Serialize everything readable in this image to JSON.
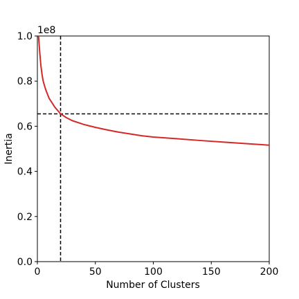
{
  "chart_data": {
    "type": "line",
    "title": "",
    "xlabel": "Number of Clusters",
    "ylabel": "Inertia",
    "y_offset_label": "1e8",
    "xlim": [
      0,
      200
    ],
    "ylim": [
      0,
      1.0
    ],
    "xticks": [
      0,
      50,
      100,
      150,
      200
    ],
    "xtick_labels": [
      "0",
      "50",
      "100",
      "150",
      "200"
    ],
    "yticks": [
      0.0,
      0.2,
      0.4,
      0.6,
      0.8,
      1.0
    ],
    "ytick_labels": [
      "0.0",
      "0.2",
      "0.4",
      "0.6",
      "0.8",
      "1.0"
    ],
    "grid": false,
    "line_color": "#d62728",
    "reference_color": "#000000",
    "series": [
      {
        "x": [
          1,
          2,
          3,
          4,
          5,
          7,
          10,
          15,
          20,
          25,
          30,
          40,
          50,
          60,
          70,
          80,
          90,
          100,
          120,
          140,
          160,
          180,
          200
        ],
        "y": [
          1.0,
          0.93,
          0.87,
          0.83,
          0.8,
          0.765,
          0.725,
          0.685,
          0.655,
          0.638,
          0.625,
          0.608,
          0.595,
          0.584,
          0.574,
          0.566,
          0.558,
          0.552,
          0.545,
          0.537,
          0.53,
          0.523,
          0.516
        ]
      }
    ],
    "reference_lines": {
      "vertical_x": 20,
      "horizontal_y": 0.655
    }
  }
}
